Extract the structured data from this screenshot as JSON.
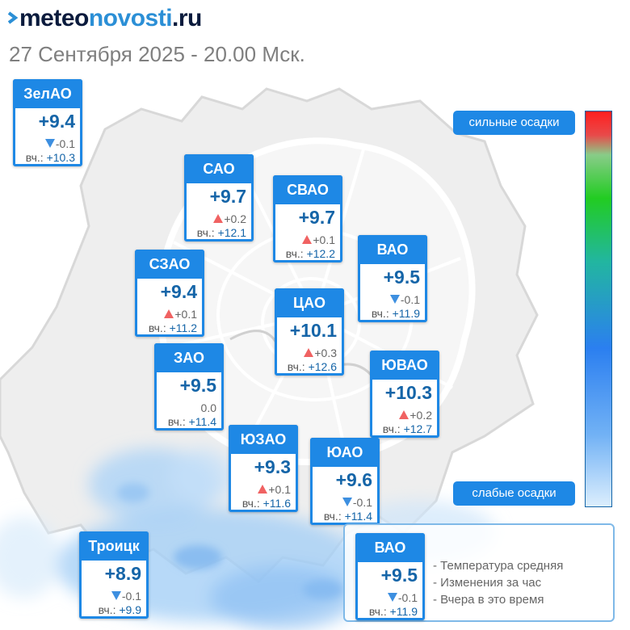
{
  "header": {
    "logo_part1": "meteo",
    "logo_part2": "novosti",
    "logo_part3": ".ru",
    "subtitle": "27 Сентября 2025 - 20.00 Мск."
  },
  "labels": {
    "yesterday_prefix": "вч.:"
  },
  "districts": [
    {
      "name": "ЗелАО",
      "temp": "+9.4",
      "trend": "down",
      "change": "-0.1",
      "yesterday": "+10.3"
    },
    {
      "name": "САО",
      "temp": "+9.7",
      "trend": "up",
      "change": "+0.2",
      "yesterday": "+12.1"
    },
    {
      "name": "СВАО",
      "temp": "+9.7",
      "trend": "up",
      "change": "+0.1",
      "yesterday": "+12.2"
    },
    {
      "name": "ВАО",
      "temp": "+9.5",
      "trend": "down",
      "change": "-0.1",
      "yesterday": "+11.9"
    },
    {
      "name": "СЗАО",
      "temp": "+9.4",
      "trend": "up",
      "change": "+0.1",
      "yesterday": "+11.2"
    },
    {
      "name": "ЦАО",
      "temp": "+10.1",
      "trend": "up",
      "change": "+0.3",
      "yesterday": "+12.6"
    },
    {
      "name": "ЗАО",
      "temp": "+9.5",
      "trend": "none",
      "change": "0.0",
      "yesterday": "+11.4"
    },
    {
      "name": "ЮВАО",
      "temp": "+10.3",
      "trend": "up",
      "change": "+0.2",
      "yesterday": "+12.7"
    },
    {
      "name": "ЮЗАО",
      "temp": "+9.3",
      "trend": "up",
      "change": "+0.1",
      "yesterday": "+11.6"
    },
    {
      "name": "ЮАО",
      "temp": "+9.6",
      "trend": "down",
      "change": "-0.1",
      "yesterday": "+11.4"
    },
    {
      "name": "Троицк",
      "temp": "+8.9",
      "trend": "down",
      "change": "-0.1",
      "yesterday": "+9.9"
    }
  ],
  "scale": {
    "top_label": "сильные осадки",
    "bottom_label": "слабые осадки"
  },
  "legend": {
    "example": {
      "name": "ВАО",
      "temp": "+9.5",
      "trend": "down",
      "change": "-0.1",
      "yesterday": "+11.9"
    },
    "items": [
      "- Температура средняя",
      "- Изменения за час",
      "- Вчера в это время"
    ]
  },
  "colors": {
    "accent": "#1e88e5",
    "temp_text": "#1565a8",
    "rise": "#f06262",
    "fall": "#3d8fe0"
  }
}
